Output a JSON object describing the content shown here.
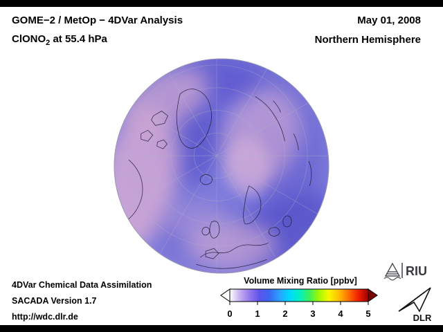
{
  "header": {
    "title": "GOME−2 / MetOp − 4DVar Analysis",
    "species": "ClONO",
    "species_subscript": "2",
    "species_suffix": " at 55.4 hPa",
    "date": "May 01, 2008",
    "hemisphere": "Northern Hemisphere"
  },
  "map": {
    "projection": "Northern Hemisphere orthographic view",
    "field_base_color": "#7370d6",
    "field_enhanced_color": "#d2a9d6",
    "field_low_color": "#5b58cd"
  },
  "footer": {
    "line1": "4DVar Chemical Data Assimilation",
    "line2": "SACADA Version 1.7",
    "line3": "http://wdc.dlr.de"
  },
  "colorbar": {
    "title": "Volume Mixing Ratio [ppbv]",
    "min": 0,
    "max": 5,
    "ticks": [
      "0",
      "1",
      "2",
      "3",
      "4",
      "5"
    ],
    "gradient_stops": [
      "#ffffff",
      "#c8b0f0",
      "#9478ec",
      "#5c54ea",
      "#3a66f2",
      "#2aa0ff",
      "#00d8ff",
      "#00f0c8",
      "#38f060",
      "#a0f800",
      "#f8f800",
      "#ffc000",
      "#ff7000",
      "#f02000",
      "#a00000"
    ],
    "under_arrow_color": "#ffffff",
    "over_arrow_color": "#7c0000"
  },
  "logos": {
    "riu_label": "RIU",
    "dlr_label": "DLR"
  }
}
